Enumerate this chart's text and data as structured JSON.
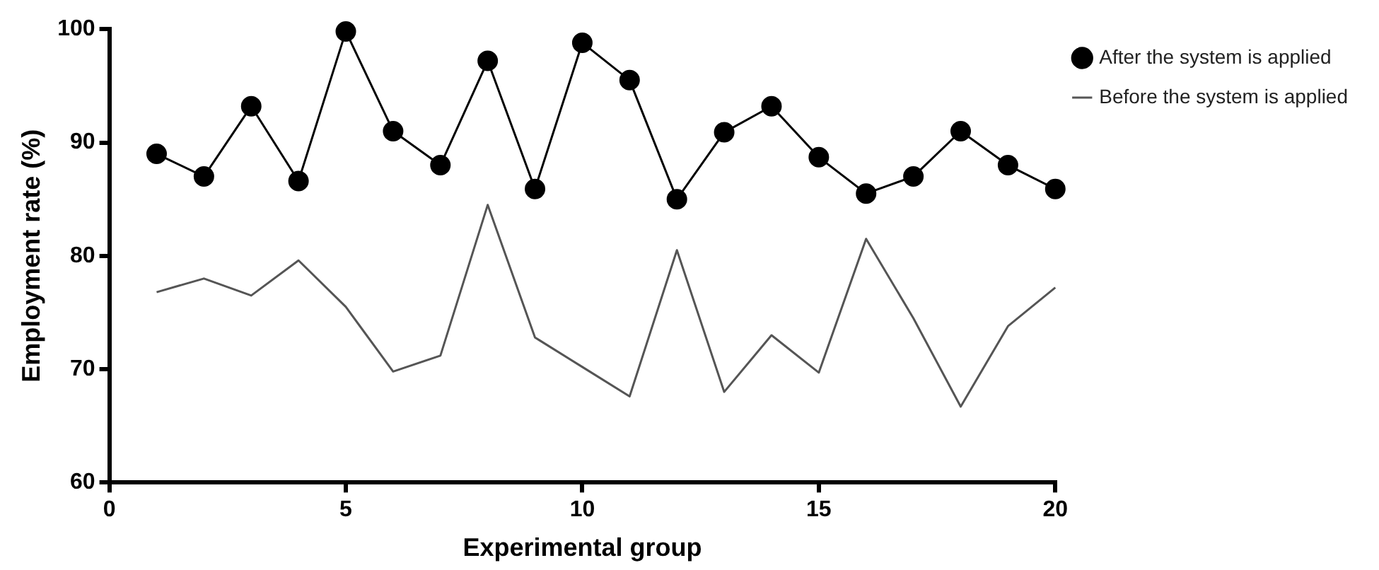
{
  "chart_data": {
    "type": "line",
    "xlabel": "Experimental group",
    "ylabel": "Employment rate (%)",
    "x": [
      1,
      2,
      3,
      4,
      5,
      6,
      7,
      8,
      9,
      10,
      11,
      12,
      13,
      14,
      15,
      16,
      17,
      18,
      19,
      20
    ],
    "series": [
      {
        "name": "After the system is applied",
        "color": "#000000",
        "marker": "circle",
        "values": [
          89,
          87,
          93.2,
          86.6,
          99.8,
          91,
          88,
          97.2,
          85.9,
          98.8,
          95.5,
          85,
          90.9,
          93.2,
          88.7,
          85.5,
          87,
          91,
          88,
          85.9
        ]
      },
      {
        "name": "Before the system is applied",
        "color": "#555555",
        "marker": "none",
        "values": [
          76.8,
          78,
          76.5,
          79.6,
          75.5,
          69.8,
          71.2,
          84.5,
          72.8,
          70.2,
          67.6,
          80.5,
          68,
          73,
          69.7,
          81.5,
          74.5,
          66.7,
          73.8,
          77.2
        ]
      }
    ],
    "xlim": [
      0,
      20
    ],
    "xticks": [
      0,
      5,
      10,
      15,
      20
    ],
    "ylim": [
      60,
      100
    ],
    "yticks": [
      60,
      70,
      80,
      90,
      100
    ],
    "grid": false,
    "legend": "top right",
    "line_style": "solid"
  }
}
